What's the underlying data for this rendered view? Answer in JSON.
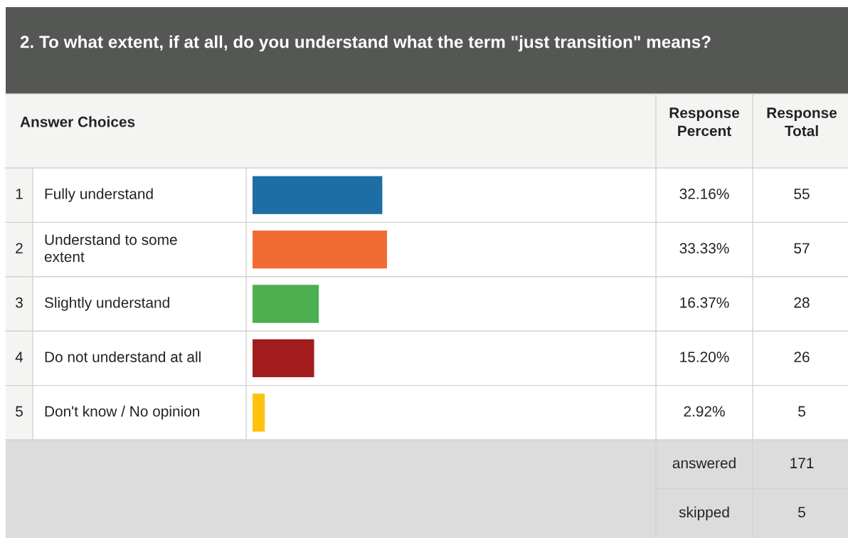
{
  "chart_data": {
    "type": "bar",
    "orientation": "horizontal",
    "title": "2. To what extent, if at all, do you understand what the term \"just transition\" means?",
    "categories": [
      "Fully understand",
      "Understand to some extent",
      "Slightly understand",
      "Do not understand at all",
      "Don't know / No opinion"
    ],
    "values": [
      32.16,
      33.33,
      16.37,
      15.2,
      2.92
    ],
    "colors": [
      "#1c6ea4",
      "#f26b34",
      "#4caf50",
      "#a21c1e",
      "#ffc10e"
    ],
    "value_labels": [
      "32.16%",
      "33.33%",
      "16.37%",
      "15.20%",
      "2.92%"
    ],
    "annotations": [
      "Answer Choices",
      "Response Percent",
      "Response Total",
      "1",
      "2",
      "3",
      "4",
      "5",
      "55",
      "57",
      "28",
      "26",
      "5",
      "answered",
      "171",
      "skipped",
      "5"
    ],
    "xlim": [
      0,
      100
    ],
    "tick_labels": false
  }
}
